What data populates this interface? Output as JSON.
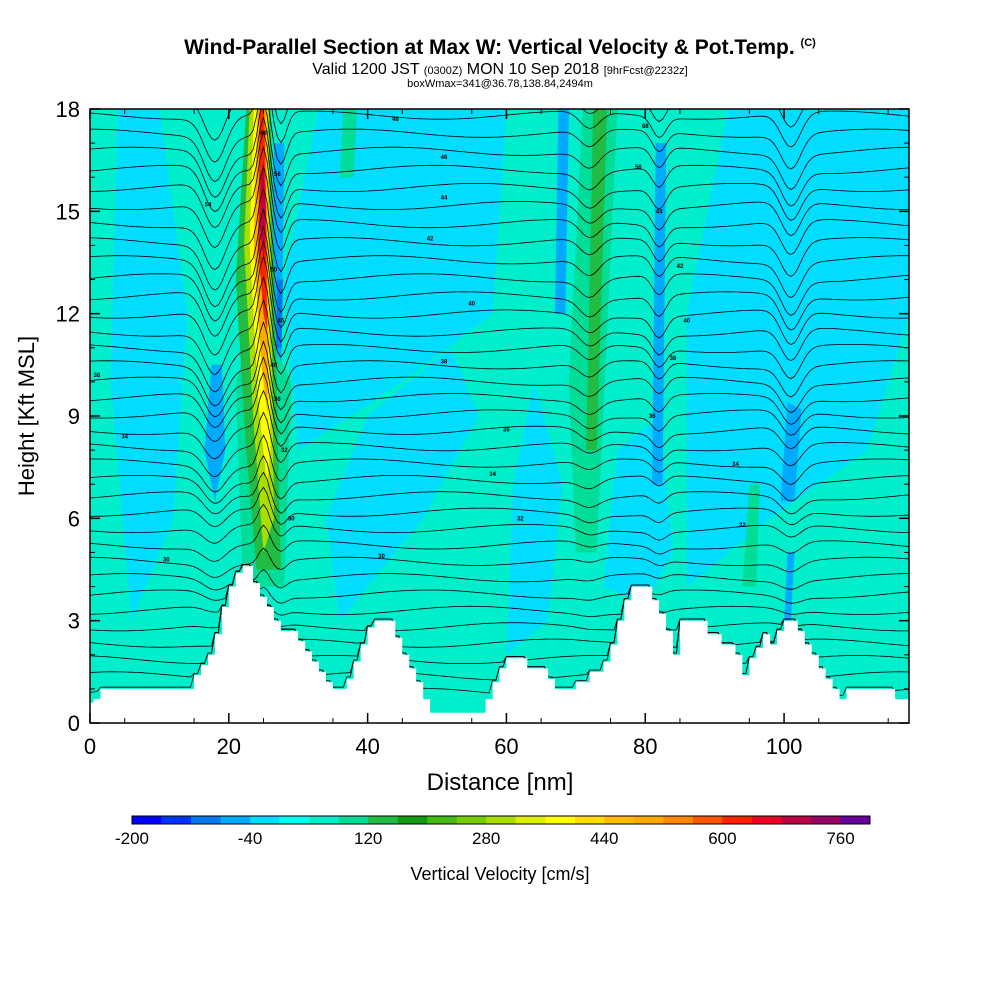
{
  "chart_data": {
    "type": "heatmap",
    "title": "Wind-Parallel Section at Max W: Vertical Velocity & Pot.Temp.",
    "title_mark": "(C)",
    "subtitle_main": "Valid 1200 JST",
    "subtitle_utc": "(0300Z)",
    "subtitle_date": "MON 10 Sep 2018",
    "subtitle_fcst": "[9hrFcst@2232z]",
    "box_label": "boxWmax=341@36.78,138.84,2494m",
    "xlabel": "Distance [nm]",
    "ylabel": "Height [Kft MSL]",
    "xlim": [
      0,
      118
    ],
    "ylim": [
      0,
      18
    ],
    "x_ticks": [
      0,
      20,
      40,
      60,
      80,
      100
    ],
    "y_ticks": [
      0,
      3,
      6,
      9,
      12,
      15,
      18
    ],
    "colorbar": {
      "label": "Vertical Velocity [cm/s]",
      "tick_labels": [
        "-200",
        "-40",
        "120",
        "280",
        "440",
        "600",
        "760"
      ],
      "levels": [
        -200,
        -160,
        -120,
        -80,
        -40,
        0,
        40,
        80,
        120,
        160,
        200,
        240,
        280,
        320,
        360,
        400,
        440,
        480,
        520,
        560,
        600,
        640,
        680,
        720,
        760,
        800
      ],
      "colors": [
        "#0000ff",
        "#0033ff",
        "#0077ee",
        "#00aaff",
        "#00ddff",
        "#00ffee",
        "#00eecc",
        "#00dd99",
        "#22bb44",
        "#119911",
        "#44bb11",
        "#77cc00",
        "#aadd00",
        "#ddee00",
        "#ffff00",
        "#ffdd00",
        "#ffbb00",
        "#ffaa00",
        "#ff8800",
        "#ff5500",
        "#ff2200",
        "#ee0022",
        "#bb0044",
        "#990066",
        "#660099"
      ]
    },
    "contour_labels": [
      {
        "x": 25,
        "y": 17.3,
        "text": "68"
      },
      {
        "x": 17,
        "y": 15.2,
        "text": "54"
      },
      {
        "x": 1,
        "y": 10.2,
        "text": "38"
      },
      {
        "x": 5,
        "y": 8.4,
        "text": "34"
      },
      {
        "x": 11,
        "y": 4.8,
        "text": "30"
      },
      {
        "x": 27,
        "y": 16.1,
        "text": "56"
      },
      {
        "x": 26.5,
        "y": 13.3,
        "text": "50"
      },
      {
        "x": 27.5,
        "y": 11.8,
        "text": "46"
      },
      {
        "x": 26.5,
        "y": 10.5,
        "text": "40"
      },
      {
        "x": 27,
        "y": 9.5,
        "text": "36"
      },
      {
        "x": 28,
        "y": 8.0,
        "text": "32"
      },
      {
        "x": 29,
        "y": 6.0,
        "text": "30"
      },
      {
        "x": 44,
        "y": 17.7,
        "text": "48"
      },
      {
        "x": 51,
        "y": 16.6,
        "text": "46"
      },
      {
        "x": 51,
        "y": 15.4,
        "text": "44"
      },
      {
        "x": 49,
        "y": 14.2,
        "text": "42"
      },
      {
        "x": 55,
        "y": 12.3,
        "text": "40"
      },
      {
        "x": 51,
        "y": 10.6,
        "text": "38"
      },
      {
        "x": 60,
        "y": 8.6,
        "text": "36"
      },
      {
        "x": 58,
        "y": 7.3,
        "text": "34"
      },
      {
        "x": 62,
        "y": 6.0,
        "text": "32"
      },
      {
        "x": 42,
        "y": 4.9,
        "text": "30"
      },
      {
        "x": 80,
        "y": 17.5,
        "text": "68"
      },
      {
        "x": 79,
        "y": 16.3,
        "text": "56"
      },
      {
        "x": 82,
        "y": 15.0,
        "text": "44"
      },
      {
        "x": 85,
        "y": 13.4,
        "text": "42"
      },
      {
        "x": 86,
        "y": 11.8,
        "text": "40"
      },
      {
        "x": 84,
        "y": 10.7,
        "text": "38"
      },
      {
        "x": 81,
        "y": 9.0,
        "text": "36"
      },
      {
        "x": 93,
        "y": 7.6,
        "text": "34"
      },
      {
        "x": 94,
        "y": 5.8,
        "text": "32"
      }
    ]
  }
}
